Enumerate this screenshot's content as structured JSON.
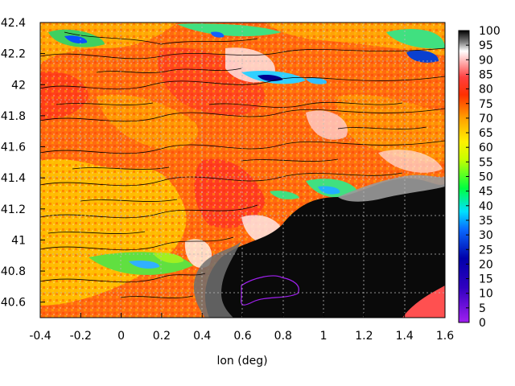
{
  "chart_data": {
    "type": "heatmap",
    "title": "",
    "xlabel": "lon (deg)",
    "ylabel": "",
    "xlim": [
      -0.4,
      1.6
    ],
    "ylim": [
      40.5,
      42.4
    ],
    "x_ticks": [
      "-0.4",
      "-0.2",
      "0",
      "0.2",
      "0.4",
      "0.6",
      "0.8",
      "1",
      "1.2",
      "1.4",
      "1.6"
    ],
    "y_ticks": [
      "40.6",
      "40.8",
      "41",
      "41.2",
      "41.4",
      "41.6",
      "41.8",
      "42",
      "42.2",
      "42.4"
    ],
    "colorbar": {
      "range": [
        0,
        100
      ],
      "ticks": [
        "0",
        "5",
        "10",
        "15",
        "20",
        "25",
        "30",
        "35",
        "40",
        "45",
        "50",
        "55",
        "60",
        "65",
        "70",
        "75",
        "80",
        "85",
        "90",
        "95",
        "100"
      ],
      "palette": [
        "#a020f0",
        "#0000aa",
        "#0a6cff",
        "#00e0ff",
        "#00ff40",
        "#fff000",
        "#ffa000",
        "#ff3000",
        "#ff8080",
        "#ffffff",
        "#808080",
        "#000000"
      ]
    },
    "grid": true,
    "regions": {
      "sea_value_high": 100,
      "land_value_typical": 75,
      "note_values": [
        40,
        85,
        20
      ]
    }
  }
}
